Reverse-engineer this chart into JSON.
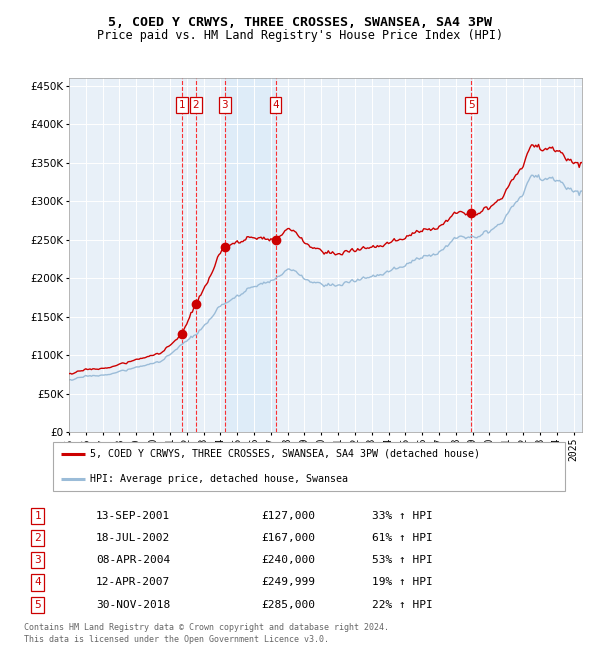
{
  "title_line1": "5, COED Y CRWYS, THREE CROSSES, SWANSEA, SA4 3PW",
  "title_line2": "Price paid vs. HM Land Registry's House Price Index (HPI)",
  "legend_line1": "5, COED Y CRWYS, THREE CROSSES, SWANSEA, SA4 3PW (detached house)",
  "legend_line2": "HPI: Average price, detached house, Swansea",
  "footer_line1": "Contains HM Land Registry data © Crown copyright and database right 2024.",
  "footer_line2": "This data is licensed under the Open Government Licence v3.0.",
  "hpi_color": "#9bbcd8",
  "hpi_fill_color": "#d0e4f5",
  "price_color": "#cc0000",
  "background_color": "#e8f0f8",
  "transactions": [
    {
      "num": 1,
      "date": "2001-09-13",
      "price": 127000,
      "label": "13-SEP-2001",
      "pct": "33%",
      "x_plot": 2001.708
    },
    {
      "num": 2,
      "date": "2002-07-18",
      "price": 167000,
      "label": "18-JUL-2002",
      "pct": "61%",
      "x_plot": 2002.542
    },
    {
      "num": 3,
      "date": "2004-04-08",
      "price": 240000,
      "label": "08-APR-2004",
      "pct": "53%",
      "x_plot": 2004.271
    },
    {
      "num": 4,
      "date": "2007-04-12",
      "price": 249999,
      "label": "12-APR-2007",
      "pct": "19%",
      "x_plot": 2007.279
    },
    {
      "num": 5,
      "date": "2018-11-30",
      "price": 285000,
      "label": "30-NOV-2018",
      "pct": "22%",
      "x_plot": 2018.915
    }
  ],
  "ylim": [
    0,
    460000
  ],
  "yticks": [
    0,
    50000,
    100000,
    150000,
    200000,
    250000,
    300000,
    350000,
    400000,
    450000
  ],
  "xlim_start": 1995.0,
  "xlim_end": 2025.5
}
